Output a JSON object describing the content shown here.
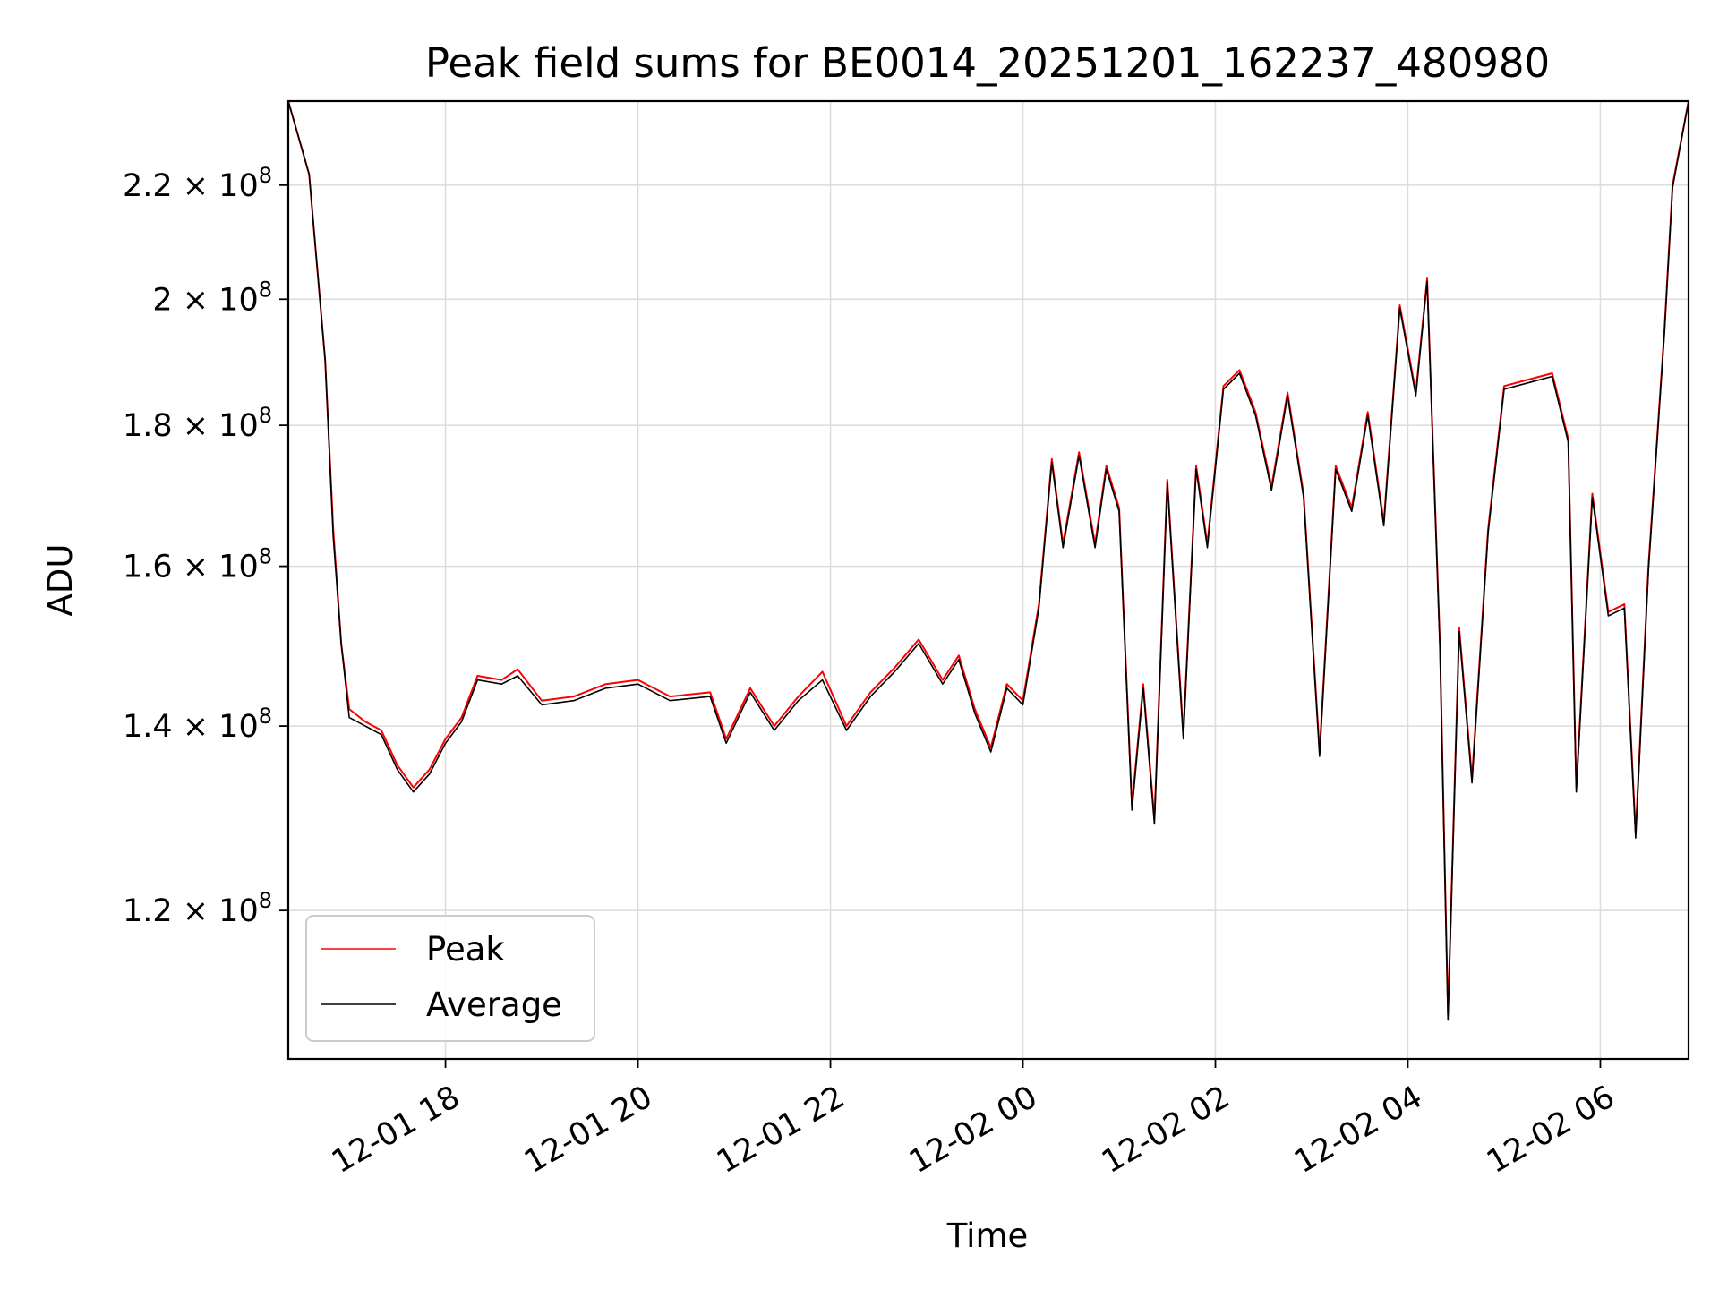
{
  "chart_data": {
    "type": "line",
    "title": "Peak field sums for BE0014_20251201_162237_480980",
    "xlabel": "Time",
    "ylabel": "ADU",
    "x_axis": {
      "range": [
        "2025-12-01 16:22",
        "2025-12-02 06:55"
      ],
      "ticks": [
        "2025-12-01 18:00",
        "2025-12-01 20:00",
        "2025-12-01 22:00",
        "2025-12-02 00:00",
        "2025-12-02 02:00",
        "2025-12-02 04:00",
        "2025-12-02 06:00"
      ],
      "tick_labels": [
        "12-01 18",
        "12-01 20",
        "12-01 22",
        "12-02 00",
        "12-02 02",
        "12-02 04",
        "12-02 06"
      ],
      "tick_rotation_deg": 30
    },
    "y_axis": {
      "scale": "log",
      "range": [
        106000000,
        236000000
      ],
      "ticks": [
        120000000,
        140000000,
        160000000,
        180000000,
        200000000,
        220000000
      ],
      "tick_mantissa": [
        "1.2",
        "1.4",
        "1.6",
        "1.8",
        "2",
        "2.2"
      ],
      "tick_base": "10",
      "tick_exponent": "8"
    },
    "grid": true,
    "legend": {
      "position": "lower-left",
      "entries": [
        "Peak",
        "Average"
      ]
    },
    "series": [
      {
        "name": "Peak",
        "color": "#ff0000",
        "points": [
          [
            "2025-12-01 16:22",
            236000000
          ],
          [
            "2025-12-01 16:35",
            222000000
          ],
          [
            "2025-12-01 16:45",
            190000000
          ],
          [
            "2025-12-01 16:50",
            165000000
          ],
          [
            "2025-12-01 16:55",
            150000000
          ],
          [
            "2025-12-01 17:00",
            142000000
          ],
          [
            "2025-12-01 17:10",
            140500000
          ],
          [
            "2025-12-01 17:20",
            139500000
          ],
          [
            "2025-12-01 17:30",
            135500000
          ],
          [
            "2025-12-01 17:40",
            133000000
          ],
          [
            "2025-12-01 17:50",
            135000000
          ],
          [
            "2025-12-01 18:00",
            138500000
          ],
          [
            "2025-12-01 18:10",
            141000000
          ],
          [
            "2025-12-01 18:20",
            146000000
          ],
          [
            "2025-12-01 18:35",
            145500000
          ],
          [
            "2025-12-01 18:45",
            146800000
          ],
          [
            "2025-12-01 19:00",
            143000000
          ],
          [
            "2025-12-01 19:20",
            143500000
          ],
          [
            "2025-12-01 19:40",
            145000000
          ],
          [
            "2025-12-01 20:00",
            145500000
          ],
          [
            "2025-12-01 20:20",
            143500000
          ],
          [
            "2025-12-01 20:45",
            144000000
          ],
          [
            "2025-12-01 20:55",
            138500000
          ],
          [
            "2025-12-01 21:10",
            144500000
          ],
          [
            "2025-12-01 21:25",
            140000000
          ],
          [
            "2025-12-01 21:40",
            143500000
          ],
          [
            "2025-12-01 21:55",
            146500000
          ],
          [
            "2025-12-01 22:10",
            140000000
          ],
          [
            "2025-12-01 22:25",
            144000000
          ],
          [
            "2025-12-01 22:40",
            147000000
          ],
          [
            "2025-12-01 22:55",
            150500000
          ],
          [
            "2025-12-01 23:10",
            145500000
          ],
          [
            "2025-12-01 23:20",
            148500000
          ],
          [
            "2025-12-01 23:30",
            142000000
          ],
          [
            "2025-12-01 23:40",
            137500000
          ],
          [
            "2025-12-01 23:50",
            145000000
          ],
          [
            "2025-12-02 00:00",
            143000000
          ],
          [
            "2025-12-02 00:10",
            155000000
          ],
          [
            "2025-12-02 00:18",
            175000000
          ],
          [
            "2025-12-02 00:25",
            163000000
          ],
          [
            "2025-12-02 00:35",
            176000000
          ],
          [
            "2025-12-02 00:45",
            163000000
          ],
          [
            "2025-12-02 00:52",
            174000000
          ],
          [
            "2025-12-02 01:00",
            168000000
          ],
          [
            "2025-12-02 01:08",
            131000000
          ],
          [
            "2025-12-02 01:15",
            145000000
          ],
          [
            "2025-12-02 01:22",
            129500000
          ],
          [
            "2025-12-02 01:30",
            172000000
          ],
          [
            "2025-12-02 01:40",
            139000000
          ],
          [
            "2025-12-02 01:48",
            174000000
          ],
          [
            "2025-12-02 01:55",
            163000000
          ],
          [
            "2025-12-02 02:05",
            186000000
          ],
          [
            "2025-12-02 02:15",
            188500000
          ],
          [
            "2025-12-02 02:25",
            182000000
          ],
          [
            "2025-12-02 02:35",
            171000000
          ],
          [
            "2025-12-02 02:45",
            185000000
          ],
          [
            "2025-12-02 02:55",
            170000000
          ],
          [
            "2025-12-02 03:05",
            137000000
          ],
          [
            "2025-12-02 03:15",
            174000000
          ],
          [
            "2025-12-02 03:25",
            168000000
          ],
          [
            "2025-12-02 03:35",
            182000000
          ],
          [
            "2025-12-02 03:45",
            166000000
          ],
          [
            "2025-12-02 03:55",
            199000000
          ],
          [
            "2025-12-02 04:05",
            185000000
          ],
          [
            "2025-12-02 04:12",
            203500000
          ],
          [
            "2025-12-02 04:20",
            150000000
          ],
          [
            "2025-12-02 04:25",
            110000000
          ],
          [
            "2025-12-02 04:32",
            152000000
          ],
          [
            "2025-12-02 04:40",
            134000000
          ],
          [
            "2025-12-02 04:50",
            165000000
          ],
          [
            "2025-12-02 05:00",
            186000000
          ],
          [
            "2025-12-02 05:15",
            187000000
          ],
          [
            "2025-12-02 05:30",
            188000000
          ],
          [
            "2025-12-02 05:40",
            178000000
          ],
          [
            "2025-12-02 05:45",
            133000000
          ],
          [
            "2025-12-02 05:55",
            170000000
          ],
          [
            "2025-12-02 06:05",
            154000000
          ],
          [
            "2025-12-02 06:15",
            155000000
          ],
          [
            "2025-12-02 06:22",
            128000000
          ],
          [
            "2025-12-02 06:30",
            160000000
          ],
          [
            "2025-12-02 06:40",
            195000000
          ],
          [
            "2025-12-02 06:45",
            220000000
          ],
          [
            "2025-12-02 06:55",
            236000000
          ]
        ]
      },
      {
        "name": "Average",
        "color": "#000000",
        "points": [
          [
            "2025-12-01 16:22",
            236000000
          ],
          [
            "2025-12-01 16:35",
            222000000
          ],
          [
            "2025-12-01 16:45",
            190000000
          ],
          [
            "2025-12-01 16:50",
            164000000
          ],
          [
            "2025-12-01 16:55",
            150000000
          ],
          [
            "2025-12-01 17:00",
            141000000
          ],
          [
            "2025-12-01 17:10",
            140000000
          ],
          [
            "2025-12-01 17:20",
            139000000
          ],
          [
            "2025-12-01 17:30",
            135000000
          ],
          [
            "2025-12-01 17:40",
            132500000
          ],
          [
            "2025-12-01 17:50",
            134500000
          ],
          [
            "2025-12-01 18:00",
            138000000
          ],
          [
            "2025-12-01 18:10",
            140500000
          ],
          [
            "2025-12-01 18:20",
            145500000
          ],
          [
            "2025-12-01 18:35",
            145000000
          ],
          [
            "2025-12-01 18:45",
            146000000
          ],
          [
            "2025-12-01 19:00",
            142500000
          ],
          [
            "2025-12-01 19:20",
            143000000
          ],
          [
            "2025-12-01 19:40",
            144500000
          ],
          [
            "2025-12-01 20:00",
            145000000
          ],
          [
            "2025-12-01 20:20",
            143000000
          ],
          [
            "2025-12-01 20:45",
            143500000
          ],
          [
            "2025-12-01 20:55",
            138000000
          ],
          [
            "2025-12-01 21:10",
            144000000
          ],
          [
            "2025-12-01 21:25",
            139500000
          ],
          [
            "2025-12-01 21:40",
            143000000
          ],
          [
            "2025-12-01 21:55",
            145500000
          ],
          [
            "2025-12-01 22:10",
            139500000
          ],
          [
            "2025-12-01 22:25",
            143500000
          ],
          [
            "2025-12-01 22:40",
            146500000
          ],
          [
            "2025-12-01 22:55",
            150000000
          ],
          [
            "2025-12-01 23:10",
            145000000
          ],
          [
            "2025-12-01 23:20",
            148000000
          ],
          [
            "2025-12-01 23:30",
            141500000
          ],
          [
            "2025-12-01 23:40",
            137000000
          ],
          [
            "2025-12-01 23:50",
            144500000
          ],
          [
            "2025-12-02 00:00",
            142500000
          ],
          [
            "2025-12-02 00:10",
            154500000
          ],
          [
            "2025-12-02 00:18",
            174500000
          ],
          [
            "2025-12-02 00:25",
            162500000
          ],
          [
            "2025-12-02 00:35",
            175500000
          ],
          [
            "2025-12-02 00:45",
            162500000
          ],
          [
            "2025-12-02 00:52",
            173500000
          ],
          [
            "2025-12-02 01:00",
            167500000
          ],
          [
            "2025-12-02 01:08",
            130500000
          ],
          [
            "2025-12-02 01:15",
            144500000
          ],
          [
            "2025-12-02 01:22",
            129000000
          ],
          [
            "2025-12-02 01:30",
            171500000
          ],
          [
            "2025-12-02 01:40",
            138500000
          ],
          [
            "2025-12-02 01:48",
            173500000
          ],
          [
            "2025-12-02 01:55",
            162500000
          ],
          [
            "2025-12-02 02:05",
            185500000
          ],
          [
            "2025-12-02 02:15",
            188000000
          ],
          [
            "2025-12-02 02:25",
            181500000
          ],
          [
            "2025-12-02 02:35",
            170500000
          ],
          [
            "2025-12-02 02:45",
            184500000
          ],
          [
            "2025-12-02 02:55",
            169500000
          ],
          [
            "2025-12-02 03:05",
            136500000
          ],
          [
            "2025-12-02 03:15",
            173500000
          ],
          [
            "2025-12-02 03:25",
            167500000
          ],
          [
            "2025-12-02 03:35",
            181500000
          ],
          [
            "2025-12-02 03:45",
            165500000
          ],
          [
            "2025-12-02 03:55",
            198500000
          ],
          [
            "2025-12-02 04:05",
            184500000
          ],
          [
            "2025-12-02 04:12",
            203000000
          ],
          [
            "2025-12-02 04:20",
            149500000
          ],
          [
            "2025-12-02 04:25",
            109500000
          ],
          [
            "2025-12-02 04:32",
            151500000
          ],
          [
            "2025-12-02 04:40",
            133500000
          ],
          [
            "2025-12-02 04:50",
            164500000
          ],
          [
            "2025-12-02 05:00",
            185500000
          ],
          [
            "2025-12-02 05:15",
            186500000
          ],
          [
            "2025-12-02 05:30",
            187500000
          ],
          [
            "2025-12-02 05:40",
            177500000
          ],
          [
            "2025-12-02 05:45",
            132500000
          ],
          [
            "2025-12-02 05:55",
            169500000
          ],
          [
            "2025-12-02 06:05",
            153500000
          ],
          [
            "2025-12-02 06:15",
            154500000
          ],
          [
            "2025-12-02 06:22",
            127500000
          ],
          [
            "2025-12-02 06:30",
            159500000
          ],
          [
            "2025-12-02 06:40",
            194500000
          ],
          [
            "2025-12-02 06:45",
            219500000
          ],
          [
            "2025-12-02 06:55",
            236000000
          ]
        ]
      }
    ]
  }
}
